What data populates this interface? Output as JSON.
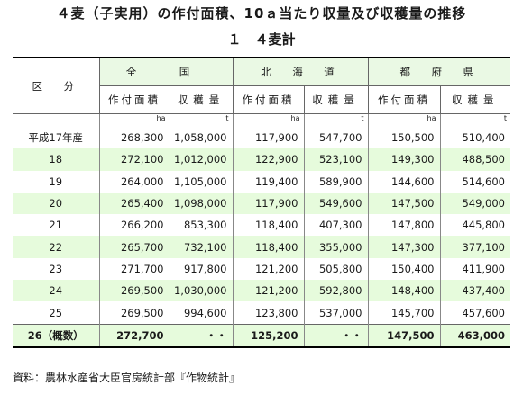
{
  "title": "４麦（子実用）の作付面積、10ａ当たり収量及び収穫量の推移",
  "subtitle": "１　４麦計",
  "header": {
    "row_label": "区　分",
    "groups": [
      "全　国",
      "北　海　道",
      "都　府　県"
    ],
    "sub": [
      "作付面積",
      "収穫量"
    ]
  },
  "units": [
    "ha",
    "t",
    "ha",
    "t",
    "ha",
    "t"
  ],
  "rows": [
    {
      "label": "平成17年産",
      "v": [
        "268,300",
        "1,058,000",
        "117,900",
        "547,700",
        "150,500",
        "510,400"
      ]
    },
    {
      "label": "18",
      "v": [
        "272,100",
        "1,012,000",
        "122,900",
        "523,100",
        "149,300",
        "488,500"
      ]
    },
    {
      "label": "19",
      "v": [
        "264,000",
        "1,105,000",
        "119,400",
        "589,900",
        "144,600",
        "514,600"
      ]
    },
    {
      "label": "20",
      "v": [
        "265,400",
        "1,098,000",
        "117,900",
        "549,600",
        "147,500",
        "549,000"
      ]
    },
    {
      "label": "21",
      "v": [
        "266,200",
        "853,300",
        "118,400",
        "407,300",
        "147,800",
        "445,800"
      ]
    },
    {
      "label": "22",
      "v": [
        "265,700",
        "732,100",
        "118,400",
        "355,000",
        "147,300",
        "377,100"
      ]
    },
    {
      "label": "23",
      "v": [
        "271,700",
        "917,800",
        "121,200",
        "505,800",
        "150,400",
        "411,900"
      ]
    },
    {
      "label": "24",
      "v": [
        "269,500",
        "1,030,000",
        "121,200",
        "592,800",
        "148,400",
        "437,400"
      ]
    },
    {
      "label": "25",
      "v": [
        "269,500",
        "994,600",
        "123,800",
        "537,000",
        "145,700",
        "457,600"
      ]
    },
    {
      "label": "26（概数）",
      "v": [
        "272,700",
        "・・",
        "125,200",
        "・・",
        "147,500",
        "463,000"
      ]
    }
  ],
  "source": "資料：農林水産省大臣官房統計部『作物統計』"
}
